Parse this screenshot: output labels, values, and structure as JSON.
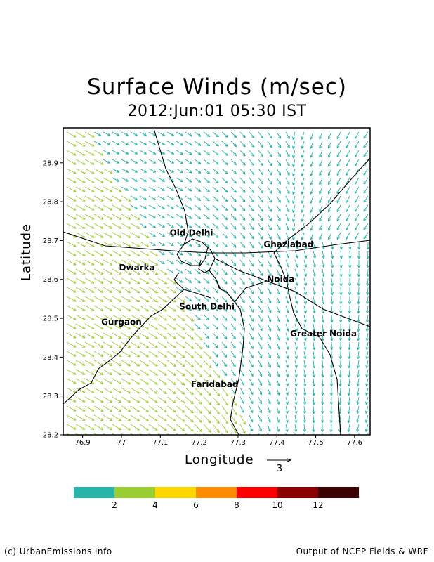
{
  "title": "Surface Winds (m/sec)",
  "subtitle": "2012:Jun:01 05:30 IST",
  "axes": {
    "xlabel": "Longitude",
    "ylabel": "Latitude",
    "xticks": [
      "76.9",
      "77",
      "77.1",
      "77.2",
      "77.3",
      "77.4",
      "77.5",
      "77.6"
    ],
    "yticks": [
      "28.2",
      "28.3",
      "28.4",
      "28.5",
      "28.6",
      "28.7",
      "28.8",
      "28.9"
    ],
    "xlim": [
      76.85,
      77.64
    ],
    "ylim": [
      28.2,
      28.99
    ]
  },
  "reference_vector": {
    "label": "3"
  },
  "places": [
    {
      "name": "Old Delhi",
      "lon": 77.18,
      "lat": 28.72
    },
    {
      "name": "Ghaziabad",
      "lon": 77.43,
      "lat": 28.69
    },
    {
      "name": "Dwarka",
      "lon": 77.04,
      "lat": 28.63
    },
    {
      "name": "Noida",
      "lon": 77.41,
      "lat": 28.6
    },
    {
      "name": "South Delhi",
      "lon": 77.22,
      "lat": 28.53
    },
    {
      "name": "Gurgaon",
      "lon": 77.0,
      "lat": 28.49
    },
    {
      "name": "Greater Noida",
      "lon": 77.52,
      "lat": 28.46
    },
    {
      "name": "Faridabad",
      "lon": 77.24,
      "lat": 28.33
    }
  ],
  "colorbar": {
    "labels": [
      "2",
      "4",
      "6",
      "8",
      "10",
      "12"
    ],
    "colors": [
      "#26b5a8",
      "#9acd32",
      "#ffd700",
      "#ff8c00",
      "#ff0000",
      "#8b0000",
      "#3d0000"
    ]
  },
  "footer": {
    "left": "(c) UrbanEmissions.info",
    "right": "Output of NCEP Fields & WRF"
  }
}
